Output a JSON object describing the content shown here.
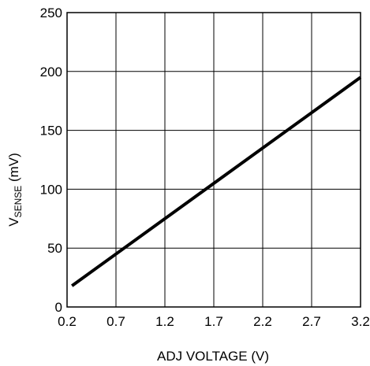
{
  "chart_data": {
    "type": "line",
    "title": "",
    "xlabel": "ADJ VOLTAGE (V)",
    "ylabel": {
      "main": "V",
      "subscript": "SENSE",
      "unit": " (mV)"
    },
    "xlim": [
      0.2,
      3.2
    ],
    "ylim": [
      0,
      250
    ],
    "xticks": [
      "0.2",
      "0.7",
      "1.2",
      "1.7",
      "2.2",
      "2.7",
      "3.2"
    ],
    "yticks": [
      "0",
      "50",
      "100",
      "150",
      "200",
      "250"
    ],
    "grid": true,
    "series": [
      {
        "x": [
          0.25,
          3.2
        ],
        "y": [
          18,
          195
        ]
      }
    ],
    "colors": {
      "line": "#000000",
      "grid": "#000000",
      "background": "#ffffff"
    }
  }
}
